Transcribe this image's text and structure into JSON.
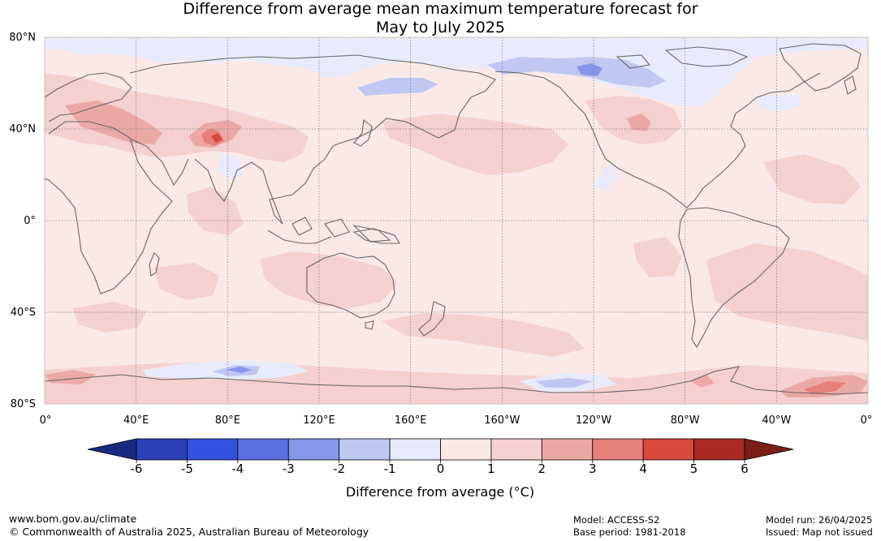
{
  "title": {
    "line1": "Difference from average mean maximum temperature forecast for",
    "line2": "May to July 2025"
  },
  "map": {
    "lat_labels": [
      "80°N",
      "40°N",
      "0°",
      "40°S",
      "80°S"
    ],
    "lat_values": [
      80,
      40,
      0,
      -40,
      -80
    ],
    "lon_labels": [
      "0°",
      "40°E",
      "80°E",
      "120°E",
      "160°E",
      "160°W",
      "120°W",
      "80°W",
      "40°W",
      "0°"
    ],
    "lon_values": [
      0,
      40,
      80,
      120,
      160,
      200,
      240,
      280,
      320,
      360
    ],
    "background_color": "#fbe9e8",
    "land_outline_color": "#666666",
    "grid_color": "#777777"
  },
  "colorbar": {
    "ticks": [
      "-6",
      "-5",
      "-4",
      "-3",
      "-2",
      "-1",
      "0",
      "1",
      "2",
      "3",
      "4",
      "5",
      "6"
    ],
    "colors": [
      "#1a2a80",
      "#2a40b4",
      "#3452e0",
      "#5b70e0",
      "#8696ea",
      "#bfc7f3",
      "#e8ebfb",
      "#fbe9e8",
      "#f4d0cf",
      "#eba9a6",
      "#e5807b",
      "#d84a3e",
      "#a92a22",
      "#7a1d17"
    ],
    "label": "Difference from average (°C)"
  },
  "footer": {
    "website": "www.bom.gov.au/climate",
    "copyright": "© Commonwealth of Australia 2025, Australian Bureau of Meteorology",
    "model": "Model: ACCESS-S2",
    "base_period": "Base period: 1981-2018",
    "model_run": "Model run: 26/04/2025",
    "issued": "Issued: Map not issued"
  }
}
